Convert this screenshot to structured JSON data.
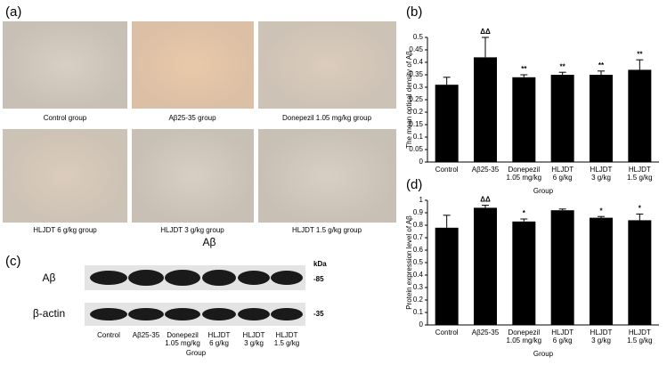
{
  "panel_a": {
    "label": "(a)",
    "captions": [
      "Control group",
      "Aβ25-35 group",
      "Donepezil 1.05 mg/kg group",
      "HLJDT 6 g/kg group",
      "HLJDT 3 g/kg group",
      "HLJDT 1.5 g/kg group"
    ],
    "footer": "Aβ"
  },
  "panel_c": {
    "label": "(c)",
    "rows": [
      "Aβ",
      "β-actin"
    ],
    "unit": "kDa",
    "sizes": [
      "-85",
      "-35"
    ],
    "lanes": [
      [
        "Control"
      ],
      [
        "Aβ25-35"
      ],
      [
        "Donepezil",
        "1.05 mg/kg"
      ],
      [
        "HLJDT",
        "6 g/kg"
      ],
      [
        "HLJDT",
        "3 g/kg"
      ],
      [
        "HLJDT",
        "1.5 g/kg"
      ]
    ],
    "x_label": "Group"
  },
  "chart_data": [
    {
      "type": "bar",
      "panel_label": "(b)",
      "y_label": "The mean  optical density of Aβ",
      "x_label": "Group",
      "categories": [
        [
          "Control"
        ],
        [
          "Aβ25-35"
        ],
        [
          "Donepezil",
          "1.05 mg/kg"
        ],
        [
          "HLJDT",
          "6 g/kg"
        ],
        [
          "HLJDT",
          "3 g/kg"
        ],
        [
          "HLJDT",
          "1.5 g/kg"
        ]
      ],
      "values": [
        0.31,
        0.42,
        0.34,
        0.35,
        0.35,
        0.37
      ],
      "errors": [
        0.03,
        0.08,
        0.01,
        0.01,
        0.015,
        0.04
      ],
      "annotations": [
        null,
        "ΔΔ",
        "**",
        "**",
        "**",
        "**"
      ],
      "color": "#000000",
      "ylim": [
        0,
        0.5
      ],
      "yticks": [
        0,
        0.05,
        0.1,
        0.15,
        0.2,
        0.25,
        0.3,
        0.35,
        0.4,
        0.45,
        0.5
      ]
    },
    {
      "type": "bar",
      "panel_label": "(d)",
      "y_label": "Protein expression level of Aβ",
      "x_label": "Group",
      "categories": [
        [
          "Control"
        ],
        [
          "Aβ25-35"
        ],
        [
          "Donepezil",
          "1.05 mg/kg"
        ],
        [
          "HLJDT",
          "6 g/kg"
        ],
        [
          "HLJDT",
          "3 g/kg"
        ],
        [
          "HLJDT",
          "1.5 g/kg"
        ]
      ],
      "values": [
        0.78,
        0.94,
        0.83,
        0.92,
        0.86,
        0.84
      ],
      "errors": [
        0.1,
        0.02,
        0.02,
        0.01,
        0.01,
        0.05
      ],
      "annotations": [
        null,
        "ΔΔ",
        "*",
        null,
        "*",
        "*"
      ],
      "color": "#000000",
      "ylim": [
        0,
        1
      ],
      "yticks": [
        0,
        0.1,
        0.2,
        0.3,
        0.4,
        0.5,
        0.6,
        0.7,
        0.8,
        0.9,
        1
      ]
    }
  ]
}
